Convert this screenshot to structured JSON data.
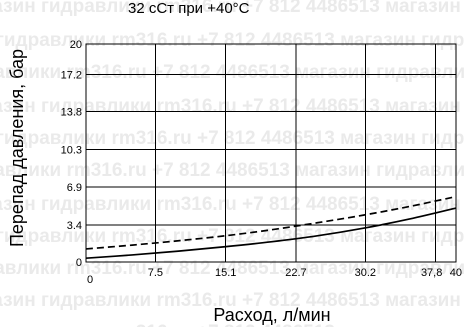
{
  "chart_data": {
    "type": "line",
    "title": "32 сСт при +40°С",
    "xlabel": "Расход, л/мин",
    "ylabel": "Перепад давления, бар",
    "xlim": [
      0,
      40
    ],
    "ylim": [
      0,
      20
    ],
    "x_ticks": [
      0,
      7.5,
      15.1,
      22.7,
      30.2,
      37.8,
      40
    ],
    "x_tick_labels": [
      "0",
      "7.5",
      "15.1",
      "22.7",
      "30.2",
      "37,8",
      "40"
    ],
    "y_ticks": [
      0,
      3.4,
      6.9,
      10.3,
      13.8,
      17.2,
      20
    ],
    "y_tick_labels": [
      "0",
      "3.4",
      "6.9",
      "10.3",
      "13.8",
      "17.2",
      "20"
    ],
    "grid": true,
    "series": [
      {
        "style": "dashed",
        "x": [
          0,
          5,
          10,
          15,
          20,
          25,
          30,
          35,
          40
        ],
        "y": [
          1.2,
          1.55,
          1.95,
          2.4,
          2.95,
          3.6,
          4.3,
          5.1,
          6.0
        ]
      },
      {
        "style": "solid",
        "x": [
          0,
          5,
          10,
          15,
          20,
          25,
          30,
          35,
          40
        ],
        "y": [
          0.35,
          0.65,
          1.0,
          1.4,
          1.85,
          2.4,
          3.1,
          3.95,
          4.95
        ]
      }
    ],
    "watermark": [
      "магазин гидравлики rm316.ru +7 812 4486513"
    ]
  }
}
